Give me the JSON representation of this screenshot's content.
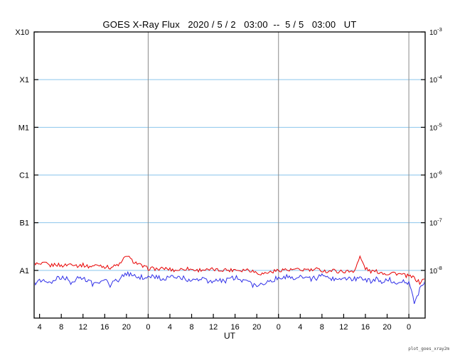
{
  "chart_data": {
    "type": "line",
    "title": "GOES X-Ray Flux   2020 / 5 / 2   03:00  --  5 / 5   03:00   UT",
    "xlabel": "UT",
    "watermark": "plot_goes_xray2m",
    "x_axis": {
      "span_hours": 72,
      "tick_hours": [
        1,
        5,
        9,
        13,
        17,
        21,
        25,
        29,
        33,
        37,
        41,
        45,
        49,
        53,
        57,
        61,
        65,
        69
      ],
      "tick_labels": [
        "4",
        "8",
        "12",
        "16",
        "20",
        "0",
        "4",
        "8",
        "12",
        "16",
        "20",
        "0",
        "4",
        "8",
        "12",
        "16",
        "20",
        "0"
      ],
      "day_boundary_hours": [
        21,
        45,
        69
      ]
    },
    "y_axis": {
      "scale": "log10",
      "top_exp": -3,
      "bottom_exp": -9,
      "left_labels": [
        {
          "label": "X10",
          "exp": -3
        },
        {
          "label": "X1",
          "exp": -4
        },
        {
          "label": "M1",
          "exp": -5
        },
        {
          "label": "C1",
          "exp": -6
        },
        {
          "label": "B1",
          "exp": -7
        },
        {
          "label": "A1",
          "exp": -8
        }
      ],
      "right_exponents": [
        -3,
        -4,
        -5,
        -6,
        -7,
        -8
      ],
      "gridline_exponents": [
        -4,
        -5,
        -6,
        -7,
        -8
      ]
    },
    "series": [
      {
        "name": "red-line",
        "color": "#e80000",
        "scale": 1e-09,
        "noise_amp_decades": 0.04,
        "values": [
          14.5,
          13,
          14,
          12.5,
          13.5,
          12.5,
          13,
          14,
          12.5,
          13,
          12,
          12.5,
          13,
          12,
          11.5,
          12.5,
          14,
          21,
          16,
          14,
          12,
          11,
          11,
          10.5,
          11,
          10.5,
          10,
          10.5,
          11,
          10.5,
          10,
          10.5,
          10,
          10.5,
          10,
          10.5,
          10,
          10.5,
          10,
          10.5,
          10,
          9,
          8.5,
          9,
          9.5,
          10,
          10.5,
          10,
          10.5,
          10,
          10.5,
          10,
          10.5,
          10,
          9.5,
          10,
          9.5,
          9.5,
          9.5,
          10,
          19,
          11,
          9.5,
          9.5,
          9,
          8.5,
          9,
          8.5,
          8,
          7.5,
          7,
          5.5,
          7,
          8
        ]
      },
      {
        "name": "blue-line",
        "color": "#3030e8",
        "scale": 1e-09,
        "noise_amp_decades": 0.055,
        "values": [
          5.5,
          6,
          6.5,
          5,
          6.5,
          7,
          6.5,
          5.5,
          7,
          6.5,
          6,
          5,
          5.5,
          6.5,
          5,
          6,
          7,
          8.5,
          8,
          7.5,
          7,
          7,
          7.5,
          7,
          6.5,
          7,
          7.5,
          7,
          6.5,
          6,
          6.5,
          7,
          6,
          5.5,
          6.5,
          6,
          6.5,
          7,
          6.5,
          6,
          5,
          4.5,
          5.5,
          6,
          6.5,
          7,
          7,
          7.5,
          7,
          7.5,
          7,
          6.5,
          7,
          7.5,
          7,
          6.5,
          7,
          6.5,
          7,
          6.5,
          7.5,
          6.5,
          6,
          6.5,
          6,
          6.5,
          6,
          5.5,
          6,
          5.5,
          2,
          4,
          5.5,
          5
        ]
      }
    ],
    "colors": {
      "grid_blue": "#8cc6ec",
      "grid_gray": "#8a8a8a",
      "frame": "#000000",
      "text": "#000000"
    }
  }
}
